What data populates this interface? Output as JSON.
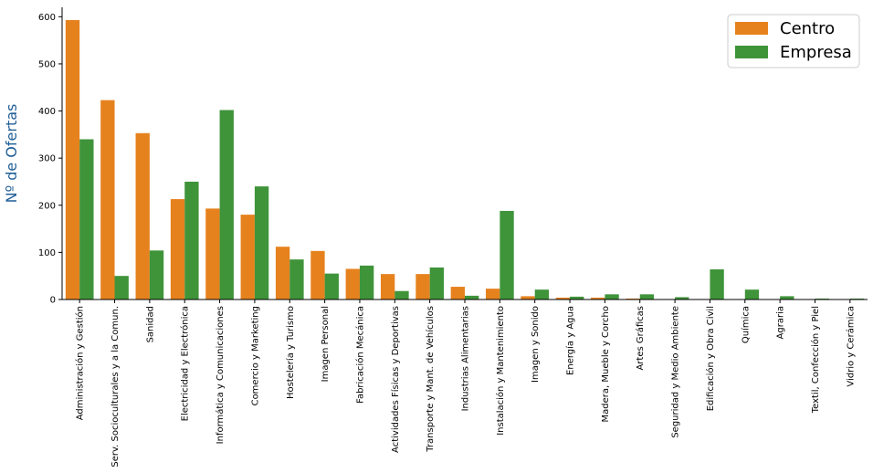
{
  "chart_data": {
    "type": "bar",
    "title": "",
    "xlabel": "",
    "ylabel": "Nº de Ofertas",
    "ylim": [
      0,
      620
    ],
    "yticks": [
      0,
      100,
      200,
      300,
      400,
      500,
      600
    ],
    "grid": false,
    "legend_position": "top-right",
    "categories": [
      "Administración y Gestión",
      "Serv. Socioculturales y a la Comun.",
      "Sanidad",
      "Electricidad y Electrónica",
      "Informática y Comunicaciones",
      "Comercio y Marketing",
      "Hostelería y Turismo",
      "Imagen Personal",
      "Fabricación Mecánica",
      "Actividades Físicas y Deportivas",
      "Transporte y Mant. de Vehículos",
      "Industrias Alimentarias",
      "Instalación y Mantenimiento",
      "Imagen y Sonido",
      "Energía y Agua",
      "Madera, Mueble y Corcho",
      "Artes Gráficas",
      "Seguridad y Medio Ambiente",
      "Edificación y Obra Civil",
      "Química",
      "Agraria",
      "Textil, Confección y Piel",
      "Vidrio y Cerámica"
    ],
    "series": [
      {
        "name": "Centro",
        "color": "#e6821e",
        "values": [
          593,
          423,
          353,
          213,
          193,
          180,
          112,
          103,
          65,
          54,
          54,
          27,
          23,
          7,
          4,
          4,
          2,
          1,
          1,
          0,
          0,
          0,
          0
        ]
      },
      {
        "name": "Empresa",
        "color": "#3f943a",
        "values": [
          340,
          50,
          104,
          250,
          402,
          240,
          85,
          55,
          72,
          18,
          68,
          8,
          188,
          21,
          6,
          11,
          11,
          5,
          64,
          21,
          7,
          2,
          2
        ]
      }
    ],
    "ylabel_color": "#1f5f97"
  }
}
